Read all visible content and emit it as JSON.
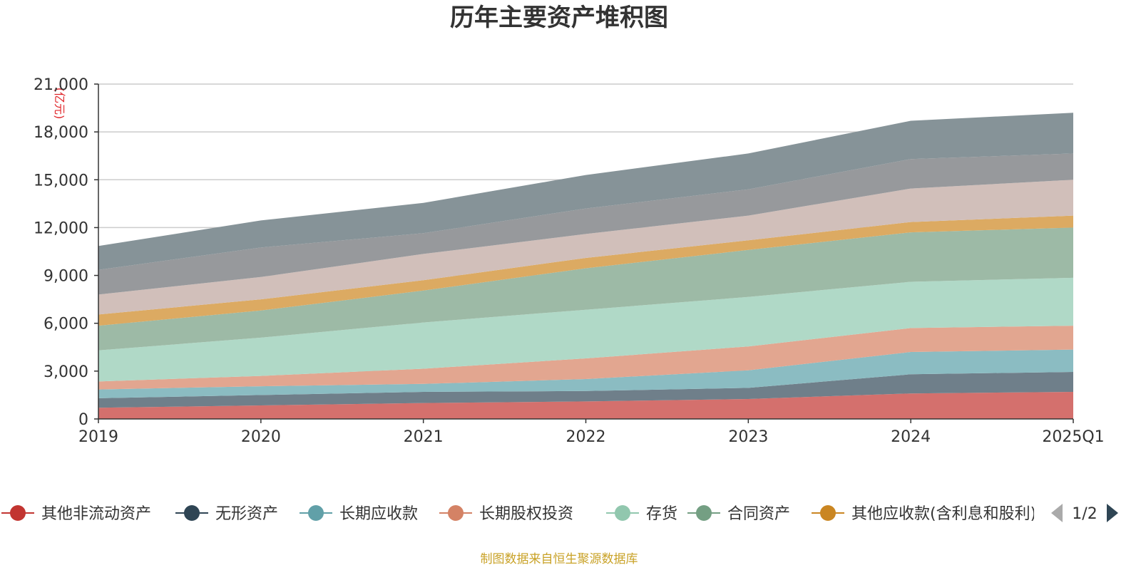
{
  "chart_data": {
    "type": "area",
    "stacked": true,
    "title": "历年主要资产堆积图",
    "y_unit": "(亿元)",
    "categories": [
      "2019",
      "2020",
      "2021",
      "2022",
      "2023",
      "2024",
      "2025Q1"
    ],
    "ylim": [
      0,
      21000
    ],
    "y_ticks": [
      "0",
      "3,000",
      "6,000",
      "9,000",
      "12,000",
      "15,000",
      "18,000",
      "21,000"
    ],
    "y_tick_values": [
      0,
      3000,
      6000,
      9000,
      12000,
      15000,
      18000,
      21000
    ],
    "grid": true,
    "legend_position": "bottom",
    "series": [
      {
        "name": "其他非流动资产",
        "color": "#d4706d",
        "marker": "#c23531",
        "values": [
          700,
          850,
          1000,
          1100,
          1250,
          1600,
          1700
        ]
      },
      {
        "name": "无形资产",
        "color": "#6f7f8a",
        "marker": "#2f4554",
        "values": [
          600,
          650,
          700,
          650,
          700,
          1200,
          1250
        ]
      },
      {
        "name": "长期应收款",
        "color": "#8bbcc2",
        "marker": "#61a0a8",
        "values": [
          550,
          550,
          500,
          750,
          1100,
          1400,
          1400
        ]
      },
      {
        "name": "长期股权投资",
        "color": "#e2a690",
        "marker": "#d48265",
        "values": [
          500,
          650,
          950,
          1300,
          1500,
          1500,
          1500
        ]
      },
      {
        "name": "存货",
        "color": "#b0d9c7",
        "marker": "#91c7ae",
        "values": [
          1950,
          2400,
          2900,
          3050,
          3100,
          2900,
          3000
        ]
      },
      {
        "name": "合同资产",
        "color": "#9dbaa6",
        "marker": "#749f83",
        "values": [
          1550,
          1700,
          2000,
          2600,
          2950,
          3100,
          3150
        ]
      },
      {
        "name": "其他应收款(含利息和股利)",
        "color": "#dcaa62",
        "marker": "#ca8622",
        "values": [
          700,
          700,
          650,
          650,
          600,
          650,
          750
        ]
      },
      {
        "name": "",
        "color": "#d1bfba",
        "values": [
          1250,
          1400,
          1650,
          1500,
          1550,
          2100,
          2250
        ]
      },
      {
        "name": "",
        "color": "#97999c",
        "values": [
          1550,
          1850,
          1300,
          1600,
          1650,
          1850,
          1650
        ]
      },
      {
        "name": "",
        "color": "#869398",
        "values": [
          1500,
          1700,
          1900,
          2100,
          2250,
          2400,
          2550
        ]
      }
    ],
    "legend_visible_count": 7
  },
  "legend": {
    "pager_text": "1/2",
    "prev_color": "#aaaaaa",
    "next_color": "#2f4554"
  },
  "footer": {
    "source_text": "制图数据来自恒生聚源数据库"
  }
}
